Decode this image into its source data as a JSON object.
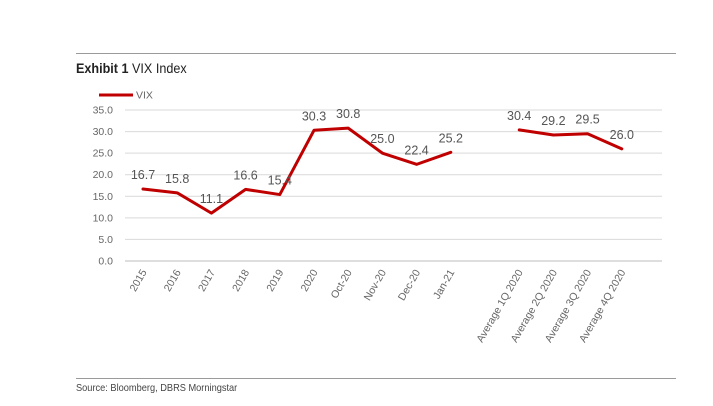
{
  "header": {
    "exhibit": "Exhibit 1",
    "title": "VIX Index"
  },
  "source": "Source: Bloomberg, DBRS Morningstar",
  "chart_data": {
    "type": "line",
    "title": "VIX Index",
    "xlabel": "",
    "ylabel": "",
    "ylim": [
      0,
      35
    ],
    "yticks": [
      "0.0",
      "5.0",
      "10.0",
      "15.0",
      "20.0",
      "25.0",
      "30.0",
      "35.0"
    ],
    "legend": {
      "position": "top-left",
      "entries": [
        "VIX"
      ]
    },
    "color": "#c00000",
    "categories": [
      "2015",
      "2016",
      "2017",
      "2018",
      "2019",
      "2020",
      "Oct-20",
      "Nov-20",
      "Dec-20",
      "Jan-21",
      "",
      "Average 1Q 2020",
      "Average 2Q 2020",
      "Average 3Q 2020",
      "Average 4Q 2020"
    ],
    "series": [
      {
        "name": "VIX",
        "values": [
          16.7,
          15.8,
          11.1,
          16.6,
          15.4,
          30.3,
          30.8,
          25.0,
          22.4,
          25.2,
          null,
          30.4,
          29.2,
          29.5,
          26.0
        ],
        "labels": [
          "16.7",
          "15.8",
          "11.1",
          "16.6",
          "15.4",
          "30.3",
          "30.8",
          "25.0",
          "22.4",
          "25.2",
          "",
          "30.4",
          "29.2",
          "29.5",
          "26.0"
        ]
      }
    ]
  }
}
